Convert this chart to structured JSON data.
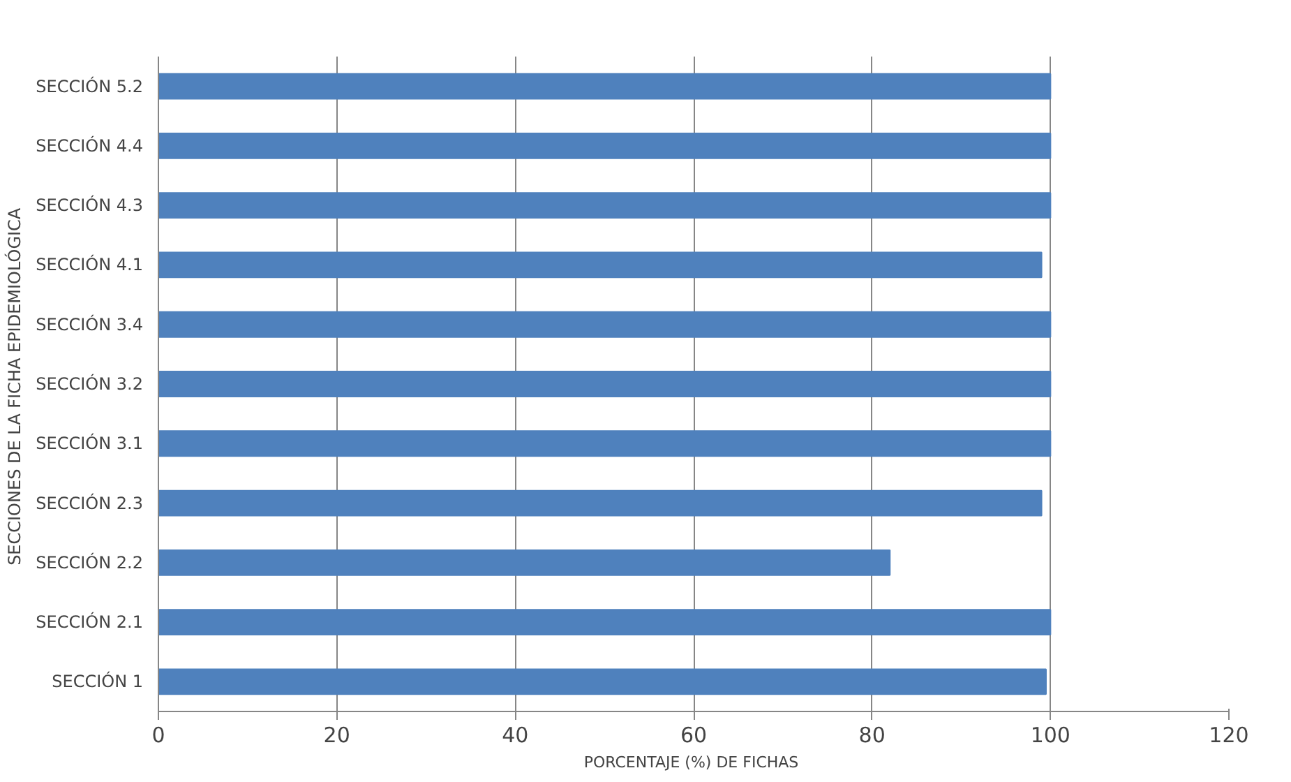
{
  "chart_data": {
    "type": "bar",
    "orientation": "horizontal",
    "categories": [
      "SECCIÓN 5.2",
      "SECCIÓN 4.4",
      "SECCIÓN 4.3",
      "SECCIÓN 4.1",
      "SECCIÓN 3.4",
      "SECCIÓN 3.2",
      "SECCIÓN 3.1",
      "SECCIÓN 2.3",
      "SECCIÓN 2.2",
      "SECCIÓN 2.1",
      "SECCIÓN 1"
    ],
    "values": [
      100,
      100,
      100,
      99,
      100,
      100,
      100,
      99,
      82,
      100,
      99.5
    ],
    "color": "#4f81bd",
    "xlim": [
      0,
      120
    ],
    "xticks": [
      0,
      20,
      40,
      60,
      80,
      100,
      120
    ],
    "xlabel": "PORCENTAJE  (%) DE FICHAS",
    "ylabel": "SECCIONES  DE LA FICHA EPIDEMIOLÓGICA",
    "grid": "x"
  }
}
